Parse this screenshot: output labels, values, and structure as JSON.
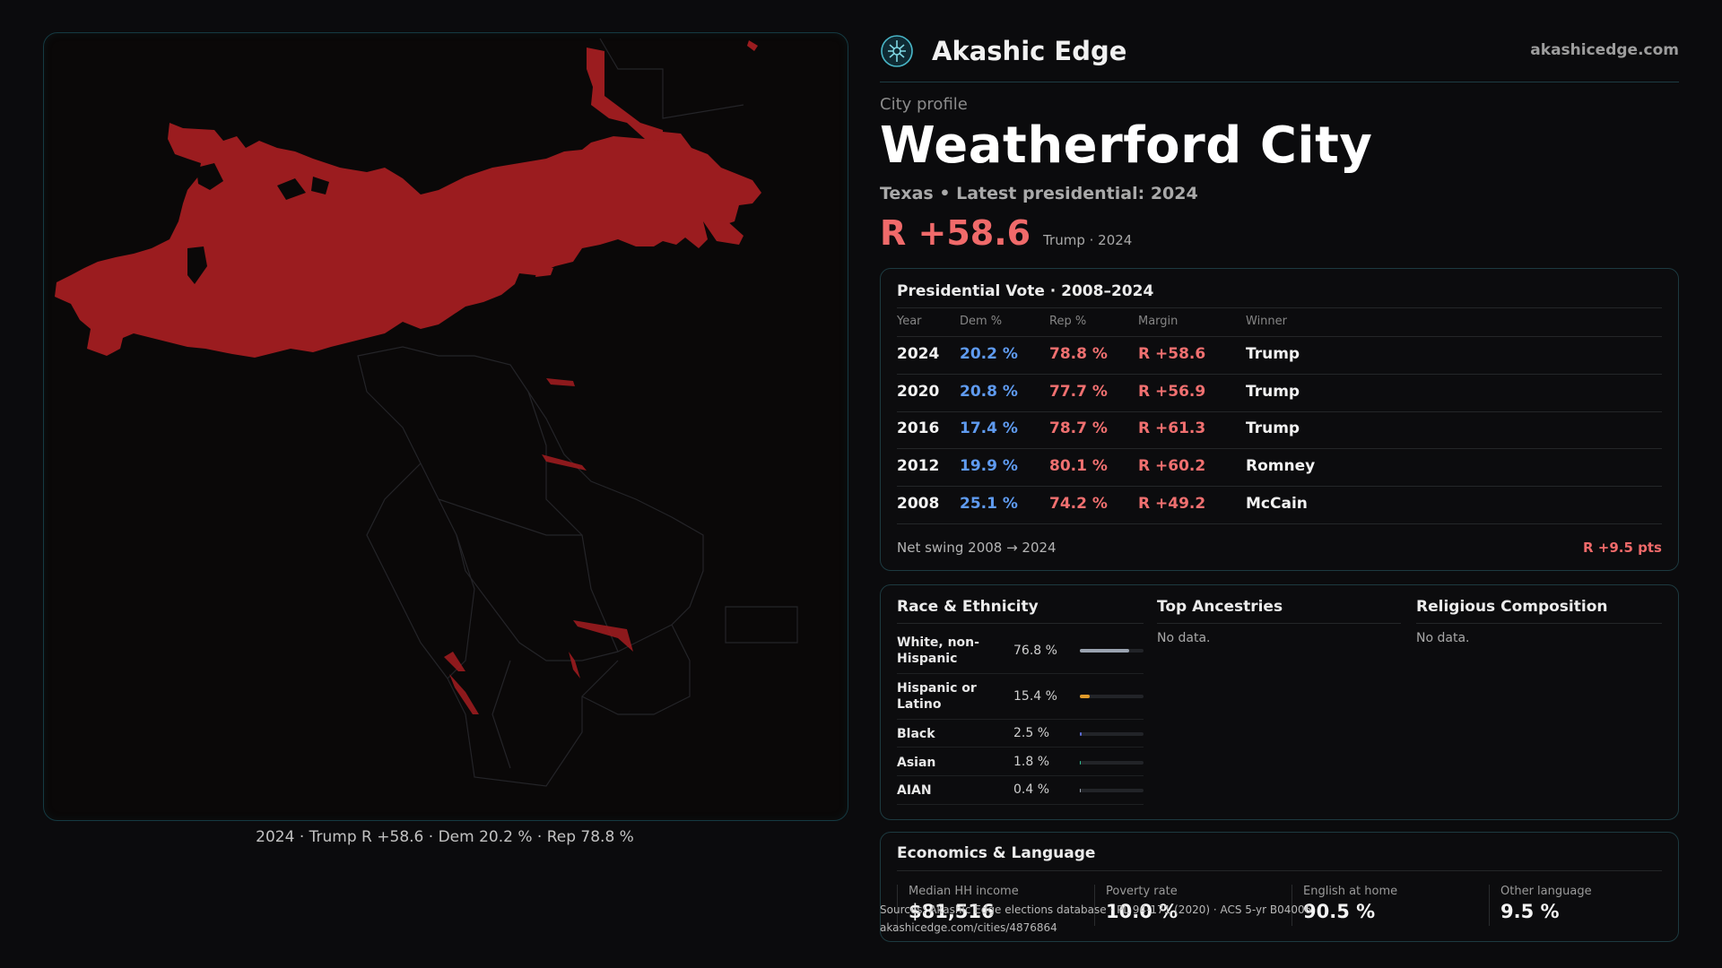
{
  "brand": {
    "name": "Akashic Edge",
    "url": "akashicedge.com"
  },
  "profile": {
    "kicker": "City profile",
    "city": "Weatherford City",
    "subline": "Texas • Latest presidential: 2024",
    "margin": "R +58.6",
    "margin_note": "Trump · 2024"
  },
  "map": {
    "caption": "2024 · Trump R +58.6 · Dem 20.2 % · Rep 78.8 %",
    "fill_color": "#9b1c1f",
    "boundary_color": "#2a2a2e"
  },
  "vote": {
    "title": "Presidential Vote · 2008–2024",
    "headers": [
      "Year",
      "Dem %",
      "Rep %",
      "Margin",
      "Winner"
    ],
    "rows": [
      {
        "year": "2024",
        "dem": "20.2 %",
        "rep": "78.8 %",
        "margin": "R +58.6",
        "winner": "Trump"
      },
      {
        "year": "2020",
        "dem": "20.8 %",
        "rep": "77.7 %",
        "margin": "R +56.9",
        "winner": "Trump"
      },
      {
        "year": "2016",
        "dem": "17.4 %",
        "rep": "78.7 %",
        "margin": "R +61.3",
        "winner": "Trump"
      },
      {
        "year": "2012",
        "dem": "19.9 %",
        "rep": "80.1 %",
        "margin": "R +60.2",
        "winner": "Romney"
      },
      {
        "year": "2008",
        "dem": "25.1 %",
        "rep": "74.2 %",
        "margin": "R +49.2",
        "winner": "McCain"
      }
    ],
    "swing_label": "Net swing 2008 → 2024",
    "swing_value": "R +9.5 pts"
  },
  "demographics": {
    "race_title": "Race & Ethnicity",
    "race": [
      {
        "label": "White, non-Hispanic",
        "value": "76.8 %",
        "share": 0.768,
        "color": "#9aa3b0"
      },
      {
        "label": "Hispanic or Latino",
        "value": "15.4 %",
        "share": 0.154,
        "color": "#e09a2a"
      },
      {
        "label": "Black",
        "value": "2.5 %",
        "share": 0.025,
        "color": "#5b6bd6"
      },
      {
        "label": "Asian",
        "value": "1.8 %",
        "share": 0.018,
        "color": "#2fbf8f"
      },
      {
        "label": "AIAN",
        "value": "0.4 %",
        "share": 0.004,
        "color": "#9aa3b0"
      }
    ],
    "ancestry_title": "Top Ancestries",
    "ancestry_empty": "No data.",
    "religion_title": "Religious Composition",
    "religion_empty": "No data."
  },
  "economics": {
    "title": "Economics & Language",
    "stats": [
      {
        "label": "Median HH income",
        "value": "$81,516"
      },
      {
        "label": "Poverty rate",
        "value": "10.0 %"
      },
      {
        "label": "English at home",
        "value": "90.5 %"
      },
      {
        "label": "Other language",
        "value": "9.5 %"
      }
    ]
  },
  "footer": {
    "source": "Sources: Akashic Edge elections database · PL 94-171 (2020) · ACS 5-yr B04006",
    "link": "akashicedge.com/cities/4876864"
  }
}
